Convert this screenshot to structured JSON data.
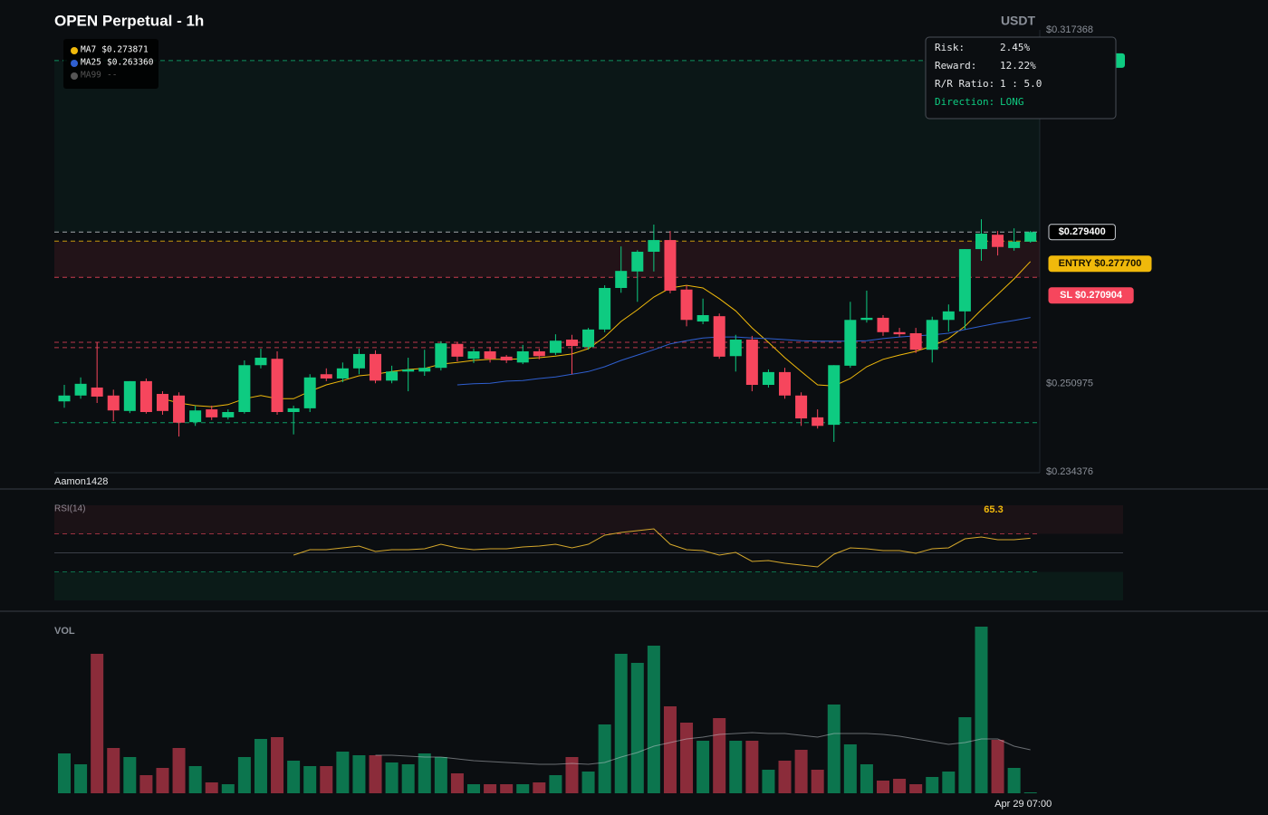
{
  "chart_data": {
    "type": "candlestick",
    "title": "OPEN Perpetual - 1h",
    "quote": "USDT",
    "watermark": "Aamon1428",
    "categories": [
      null,
      null,
      null,
      null,
      null,
      null,
      null,
      null,
      null,
      null,
      null,
      null,
      null,
      null,
      null,
      null,
      null,
      null,
      null,
      null,
      null,
      null,
      null,
      null,
      null,
      null,
      null,
      null,
      null,
      null,
      null,
      null,
      null,
      null,
      null,
      null,
      null,
      null,
      null,
      null,
      null,
      null,
      null,
      null,
      null,
      null,
      null,
      null,
      null,
      null,
      null,
      null,
      null,
      null,
      null,
      null,
      null,
      null,
      null,
      "Apr 29 07:00"
    ],
    "open": [
      0.2476,
      0.2487,
      0.2502,
      0.2487,
      0.2458,
      0.2514,
      0.249,
      0.2487,
      0.2437,
      0.2461,
      0.2446,
      0.2456,
      0.2544,
      0.2556,
      0.2456,
      0.2463,
      0.2527,
      0.2519,
      0.2538,
      0.2565,
      0.2515,
      0.2532,
      0.2532,
      0.2539,
      0.2584,
      0.2556,
      0.257,
      0.256,
      0.2549,
      0.257,
      0.2567,
      0.2592,
      0.2578,
      0.2611,
      0.2689,
      0.272,
      0.2757,
      0.2779,
      0.2686,
      0.2626,
      0.2636,
      0.2561,
      0.2592,
      0.2507,
      0.2531,
      0.2487,
      0.2446,
      0.2432,
      0.2543,
      0.2629,
      0.2633,
      0.2606,
      0.2604,
      0.2573,
      0.2629,
      0.2645,
      0.2762,
      0.2789,
      0.2764,
      0.2776
    ],
    "high": [
      0.2507,
      0.2521,
      0.2587,
      0.2498,
      0.2514,
      0.2519,
      0.2495,
      0.2493,
      0.2468,
      0.2468,
      0.2461,
      0.2553,
      0.2575,
      0.257,
      0.2468,
      0.2527,
      0.2538,
      0.2549,
      0.2575,
      0.2572,
      0.2543,
      0.2558,
      0.2573,
      0.2589,
      0.2587,
      0.2575,
      0.2578,
      0.2563,
      0.2582,
      0.2575,
      0.2602,
      0.2601,
      0.2614,
      0.2694,
      0.2767,
      0.276,
      0.2808,
      0.2796,
      0.2694,
      0.2669,
      0.2641,
      0.2601,
      0.2599,
      0.2536,
      0.2539,
      0.2493,
      0.2461,
      0.2544,
      0.2663,
      0.2684,
      0.2638,
      0.2614,
      0.2614,
      0.2635,
      0.2658,
      0.2762,
      0.2818,
      0.2796,
      0.2801,
      0.2796
    ],
    "low": [
      0.2464,
      0.2481,
      0.2473,
      0.2439,
      0.2454,
      0.2453,
      0.2451,
      0.241,
      0.243,
      0.2441,
      0.2442,
      0.2453,
      0.2538,
      0.2451,
      0.2414,
      0.2456,
      0.2514,
      0.2512,
      0.2527,
      0.251,
      0.251,
      0.2495,
      0.2524,
      0.2534,
      0.2551,
      0.2548,
      0.2549,
      0.2548,
      0.2546,
      0.2555,
      0.2563,
      0.2527,
      0.2573,
      0.2606,
      0.268,
      0.2663,
      0.272,
      0.2679,
      0.2617,
      0.2621,
      0.2556,
      0.2532,
      0.2495,
      0.2502,
      0.2481,
      0.243,
      0.2425,
      0.24,
      0.2539,
      0.2624,
      0.2599,
      0.2597,
      0.2567,
      0.2549,
      0.2607,
      0.2611,
      0.274,
      0.275,
      0.2759,
      0.2774
    ],
    "close": [
      0.2487,
      0.2509,
      0.2485,
      0.2459,
      0.2514,
      0.2456,
      0.2458,
      0.2436,
      0.2459,
      0.2446,
      0.2456,
      0.2544,
      0.2558,
      0.2456,
      0.2463,
      0.2521,
      0.2519,
      0.2538,
      0.2565,
      0.2515,
      0.2532,
      0.2536,
      0.2539,
      0.2585,
      0.256,
      0.257,
      0.2556,
      0.2553,
      0.257,
      0.2561,
      0.259,
      0.258,
      0.2611,
      0.2689,
      0.2721,
      0.2757,
      0.2779,
      0.2684,
      0.2629,
      0.2638,
      0.256,
      0.2592,
      0.2507,
      0.2531,
      0.2487,
      0.2444,
      0.243,
      0.2544,
      0.2629,
      0.2633,
      0.2606,
      0.2602,
      0.2573,
      0.2629,
      0.2645,
      0.2762,
      0.2791,
      0.2766,
      0.2776,
      0.2794
    ],
    "up_color": "#0ecb81",
    "down_color": "#f6465d",
    "series": [
      {
        "name": "MA7",
        "color": "#f0b90b",
        "values": [
          null,
          null,
          null,
          null,
          null,
          null,
          0.2481,
          0.2473,
          0.2468,
          0.2466,
          0.247,
          0.2481,
          0.2487,
          0.2481,
          0.2481,
          0.2495,
          0.2507,
          0.2515,
          0.2524,
          0.2527,
          0.2532,
          0.2536,
          0.2538,
          0.2546,
          0.2549,
          0.2553,
          0.2555,
          0.2555,
          0.2556,
          0.2558,
          0.2561,
          0.2565,
          0.2575,
          0.2597,
          0.2626,
          0.2648,
          0.2672,
          0.2689,
          0.2694,
          0.2689,
          0.2669,
          0.2646,
          0.2614,
          0.2587,
          0.2558,
          0.2532,
          0.2507,
          0.2505,
          0.2519,
          0.2541,
          0.2555,
          0.2563,
          0.257,
          0.258,
          0.2594,
          0.2617,
          0.2648,
          0.2677,
          0.2706,
          0.273871
        ]
      },
      {
        "name": "MA25",
        "color": "#2f5fd0",
        "values": [
          null,
          null,
          null,
          null,
          null,
          null,
          null,
          null,
          null,
          null,
          null,
          null,
          null,
          null,
          null,
          null,
          null,
          null,
          null,
          null,
          null,
          null,
          null,
          null,
          0.2507,
          0.2509,
          0.251,
          0.2514,
          0.2515,
          0.2519,
          0.2522,
          0.2527,
          0.2532,
          0.2541,
          0.2553,
          0.2563,
          0.2573,
          0.2584,
          0.259,
          0.2595,
          0.2597,
          0.2597,
          0.2595,
          0.2594,
          0.2592,
          0.259,
          0.2589,
          0.2589,
          0.2589,
          0.259,
          0.2594,
          0.2597,
          0.2599,
          0.2601,
          0.2604,
          0.2611,
          0.2617,
          0.2623,
          0.2628,
          0.26336
        ]
      }
    ],
    "legend": [
      {
        "name": "MA7",
        "value": "$0.273871",
        "color": "#f0b90b",
        "text_color": "#ffffff"
      },
      {
        "name": "MA25",
        "value": "$0.263360",
        "color": "#2f5fd0",
        "text_color": "#ffffff"
      },
      {
        "name": "MA99",
        "value": "--",
        "color": "#555555",
        "text_color": "#555555"
      }
    ],
    "ylim": [
      0.234376,
      0.317368
    ],
    "yticks": [
      {
        "value": 0.317368,
        "label": "$0.317368"
      },
      {
        "value": 0.250975,
        "label": "$0.250975"
      },
      {
        "value": 0.234376,
        "label": "$0.234376"
      }
    ],
    "price_lines": [
      {
        "value": 0.2794,
        "label": "$0.279400",
        "color": "#c8ccd2",
        "style": "outline"
      },
      {
        "value": 0.2777,
        "label": "ENTRY $0.277700",
        "color": "#f0b90b",
        "style": "fill"
      },
      {
        "value": 0.270904,
        "label": "SL $0.270904",
        "color": "#f6465d",
        "style": "fill"
      }
    ],
    "take_profit": {
      "value": 0.3116,
      "color": "#0ecb81"
    },
    "levels": [
      {
        "value": 0.2587,
        "color": "#f6465d"
      },
      {
        "value": 0.2577,
        "color": "#f6465d"
      },
      {
        "value": 0.2436,
        "color": "#0ecb81"
      }
    ],
    "info": {
      "rows": [
        [
          "Risk:",
          "2.45%"
        ],
        [
          "Reward:",
          "12.22%"
        ],
        [
          "R/R Ratio:",
          "1 : 5.0"
        ],
        [
          "Direction:",
          "LONG"
        ]
      ]
    },
    "rsi": {
      "title": "RSI(14)",
      "color": "#d4a72c",
      "ylim": [
        0,
        100
      ],
      "levels": [
        70,
        50,
        30
      ],
      "values": [
        null,
        null,
        null,
        null,
        null,
        null,
        null,
        null,
        null,
        null,
        null,
        null,
        null,
        null,
        47.6,
        53.3,
        53.3,
        55.2,
        57.1,
        51.4,
        53.3,
        53.3,
        54.3,
        59.0,
        55.2,
        53.3,
        54.3,
        54.3,
        56.2,
        57.1,
        59.0,
        55.2,
        59.0,
        68.6,
        71.4,
        73.3,
        75.2,
        59.0,
        53.3,
        52.4,
        47.6,
        50.5,
        41.0,
        41.9,
        39.0,
        37.1,
        35.2,
        48.6,
        55.2,
        54.3,
        52.4,
        52.4,
        49.5,
        54.3,
        55.2,
        64.8,
        66.7,
        63.8,
        63.8,
        65.3
      ]
    },
    "volume": {
      "title": "VOL",
      "ylim": [
        0,
        190
      ],
      "values": [
        44,
        32,
        154,
        50,
        40,
        20,
        28,
        50,
        30,
        12,
        10,
        40,
        60,
        62,
        36,
        30,
        30,
        46,
        42,
        42,
        34,
        32,
        44,
        40,
        22,
        10,
        10,
        10,
        10,
        12,
        20,
        40,
        24,
        76,
        154,
        144,
        163,
        96,
        78,
        58,
        83,
        58,
        58,
        26,
        36,
        48,
        26,
        98,
        54,
        32,
        14,
        16,
        10,
        18,
        24,
        84,
        184,
        59,
        28,
        1
      ],
      "ma": [
        null,
        null,
        null,
        null,
        null,
        null,
        null,
        null,
        null,
        null,
        null,
        null,
        null,
        null,
        null,
        null,
        null,
        null,
        null,
        42,
        42,
        41,
        40,
        40,
        38,
        36,
        35,
        34,
        33,
        32,
        32,
        33,
        32,
        34,
        40,
        45,
        52,
        56,
        60,
        62,
        65,
        66,
        67,
        66,
        66,
        64,
        62,
        66,
        66,
        66,
        65,
        63,
        60,
        57,
        54,
        56,
        60,
        60,
        52,
        48
      ]
    }
  }
}
